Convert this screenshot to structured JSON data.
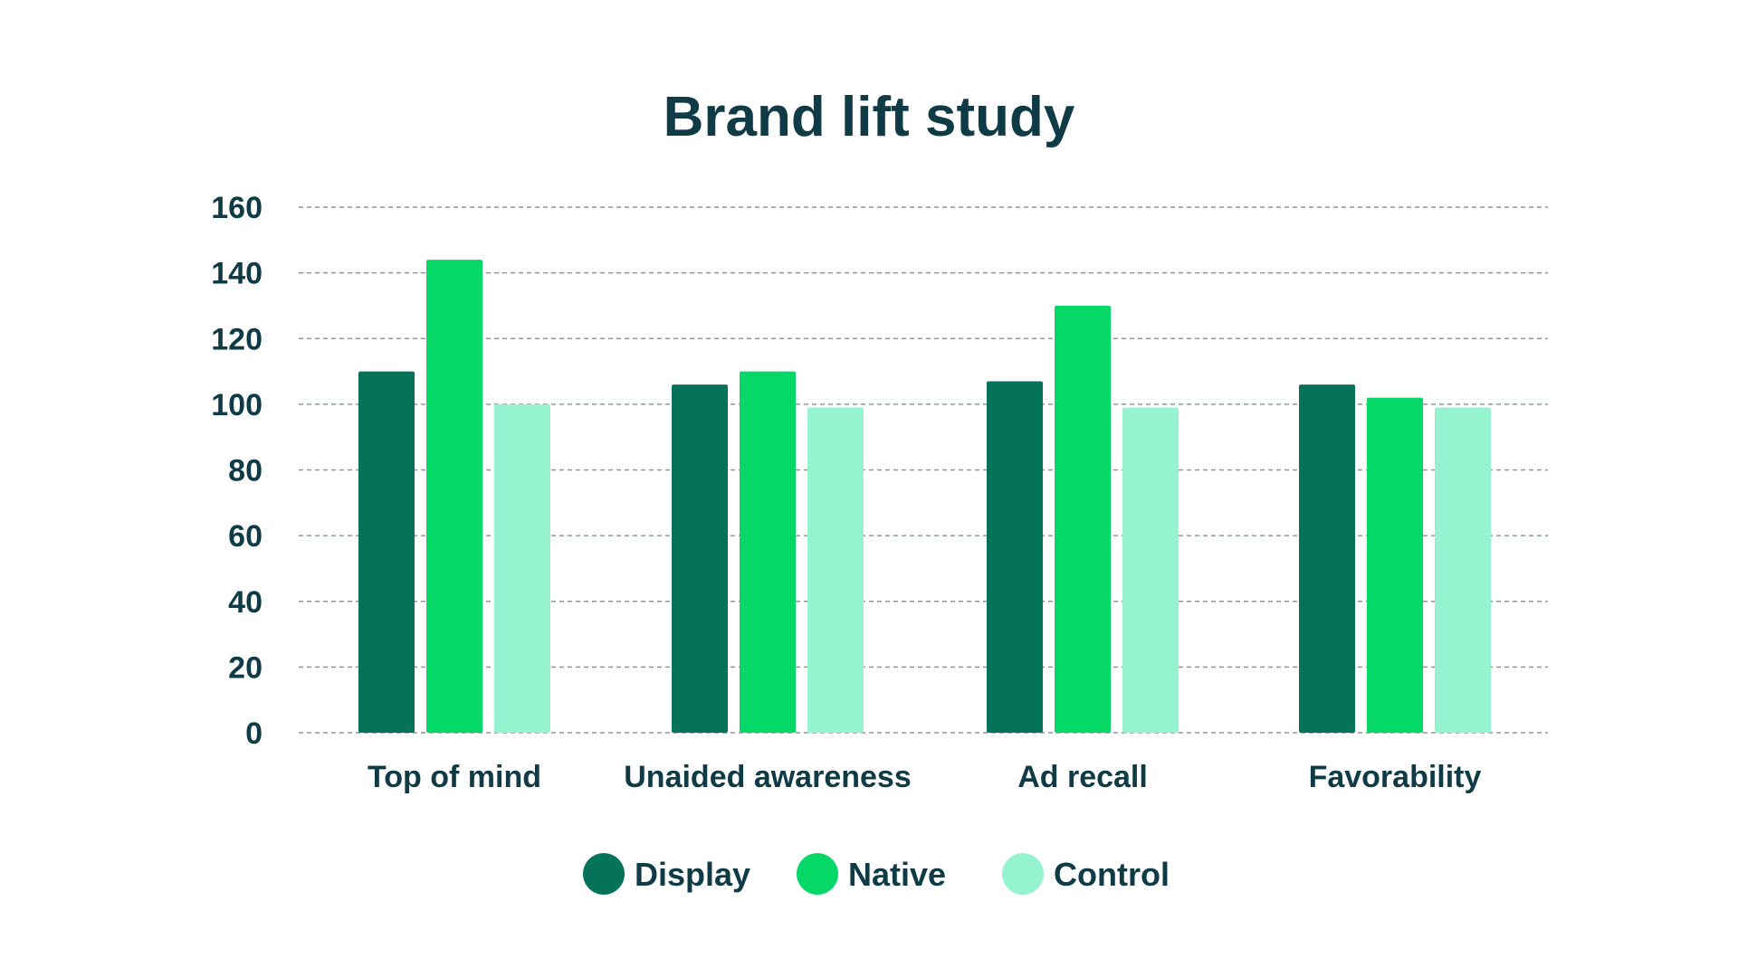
{
  "chart_data": {
    "type": "bar",
    "title": "Brand lift study",
    "xlabel": "",
    "ylabel": "",
    "ylim": [
      0,
      160
    ],
    "yticks": [
      0,
      20,
      40,
      60,
      80,
      100,
      120,
      140,
      160
    ],
    "grid": true,
    "legend_position": "bottom",
    "categories": [
      "Top of mind",
      "Unaided awareness",
      "Ad recall",
      "Favorability"
    ],
    "series": [
      {
        "name": "Display",
        "color": "#04735a",
        "values": [
          110,
          106,
          107,
          106
        ]
      },
      {
        "name": "Native",
        "color": "#05d867",
        "values": [
          144,
          110,
          130,
          102
        ]
      },
      {
        "name": "Control",
        "color": "#96f3cf",
        "values": [
          100,
          99,
          99,
          99
        ]
      }
    ]
  }
}
